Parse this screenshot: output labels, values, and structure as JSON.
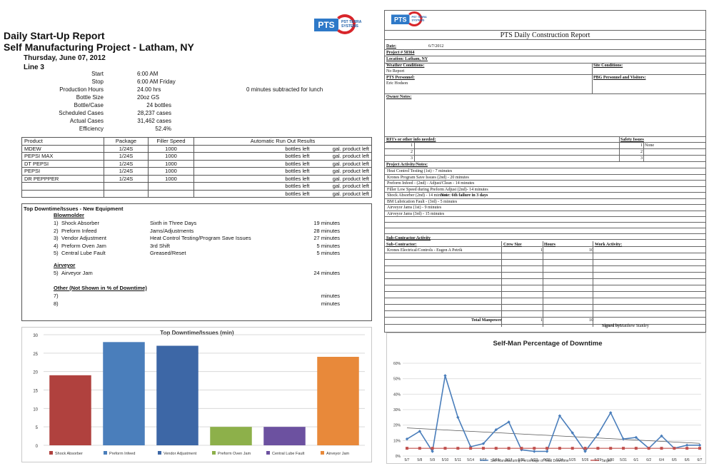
{
  "logo": {
    "text": "PTS",
    "sub": "PST TERRA\nSYSTEMS"
  },
  "left_report": {
    "title": "Daily Start-Up Report",
    "project": "Self Manufacturing Project - Latham, NY",
    "date": "Thursday, June 07, 2012",
    "line": "Line 3",
    "stats": [
      {
        "label": "Start",
        "value": "6:00 AM"
      },
      {
        "label": "Stop",
        "value": "6:00 AM Friday"
      },
      {
        "label": "Production Hours",
        "value": "24.00 hrs"
      },
      {
        "label": "Bottle Size",
        "value": "20oz GS"
      },
      {
        "label": "Bottle/Case",
        "value": "24 bottles"
      },
      {
        "label": "Scheduled Cases",
        "value": "28,237 cases"
      },
      {
        "label": "Actual Cases",
        "value": "31,462 cases"
      },
      {
        "label": "Efficiency",
        "value": "52.4%"
      }
    ],
    "lunch_note": "0 minutes subtracted for lunch",
    "product_table": {
      "headers": [
        "Product",
        "Package",
        "Filler Speed",
        "Automatic Run Out Results"
      ],
      "rows": [
        {
          "product": "MDEW",
          "package": "1/24S",
          "speed": "1000",
          "left": "bottles left",
          "gal": "gal. product left"
        },
        {
          "product": "PEPSI MAX",
          "package": "1/24S",
          "speed": "1000",
          "left": "bottles left",
          "gal": "gal. product left"
        },
        {
          "product": "DT PEPSI",
          "package": "1/24S",
          "speed": "1000",
          "left": "bottles left",
          "gal": "gal. product left"
        },
        {
          "product": "PEPSI",
          "package": "1/24S",
          "speed": "1000",
          "left": "bottles left",
          "gal": "gal. product left"
        },
        {
          "product": "DR PEPPPER",
          "package": "1/24S",
          "speed": "1000",
          "left": "bottles left",
          "gal": "gal. product left"
        },
        {
          "product": "",
          "package": "",
          "speed": "",
          "left": "bottles left",
          "gal": "gal. product left"
        },
        {
          "product": "",
          "package": "",
          "speed": "",
          "left": "bottles left",
          "gal": "gal. product left"
        }
      ]
    },
    "downtime": {
      "title": "Top Downtime/Issues - New Equipment",
      "section1": "Blowmolder",
      "items1": [
        {
          "n": "1)",
          "name": "Shock Absorber",
          "note": "Sixth in Three Days",
          "min": "19 minutes"
        },
        {
          "n": "2)",
          "name": "Preform Infeed",
          "note": "Jams/Adjustments",
          "min": "28 minutes"
        },
        {
          "n": "3)",
          "name": "Vendor Adjustment",
          "note": "Heat Control Testing/Program Save Issues",
          "min": "27 minutes"
        },
        {
          "n": "4)",
          "name": "Preform Oven Jam",
          "note": "3rd Shift",
          "min": "5 minutes"
        },
        {
          "n": "5)",
          "name": "Central Lube Fault",
          "note": "Greased/Reset",
          "min": "5 minutes"
        }
      ],
      "section2": "Airveyor",
      "items2": [
        {
          "n": "5)",
          "name": "Airveyor Jam",
          "note": "",
          "min": "24 minutes"
        }
      ],
      "section3": "Other (Not Shown in % of Downtime)",
      "items3": [
        {
          "n": "7)",
          "name": "",
          "note": "",
          "min": "minutes"
        },
        {
          "n": "8)",
          "name": "",
          "note": "",
          "min": "minutes"
        }
      ]
    }
  },
  "right_report": {
    "title": "PTS Daily Construction Report",
    "date_label": "Date:",
    "date_value": "6/7/2012",
    "project_label": "Project # 50364",
    "location_label": "Location: Latham, NY",
    "weather_label": "Weather Conditions:",
    "weather_value": "No Report",
    "site_label": "Site Conditions:",
    "personnel_label": "PTS Personnel:",
    "personnel_value": "Eric Hodson",
    "visitors_label": "PBG Personnel and Visitors:",
    "owner_label": "Owner Notes:",
    "rfi_label": "RFI's or other info needed:",
    "rfi_nums": [
      "1",
      "2",
      "3"
    ],
    "safety_label": "Safety Issues",
    "safety_nums": [
      "1",
      "2",
      "3"
    ],
    "safety_value": "None",
    "activity_label": "Project Activity/Notes:",
    "activities": [
      "Heat Control Testing (1st) - 7 minutes",
      "Krones Program Save Issues (2nd) - 20 minutes",
      "Preform Infeed - (2nd) - Adjust/Clean - 14 minutes",
      "Filler Low Speed during Preform Adjust (2nd)- 14 minutes",
      "Shock Absorber (2nd) - 14 minutes",
      "BM Lubrication Fault - (3rd) - 5 minutes",
      "Airveyor Jams (1st) - 9 minutes",
      "Airveyor Jams (3rd) - 15 minutes"
    ],
    "shock_note": "Note:  6th failure in 3 days",
    "sub_label": "Sub-Contractor Activity",
    "sub_headers": [
      "Sub-Contractor:",
      "Crew Size",
      "Hours",
      "Work Activity:"
    ],
    "sub_rows": [
      {
        "name": "Krones Electrical/Controls - Eugen A Petrik",
        "crew": "1",
        "hours": "10"
      }
    ],
    "total_label": "Total Manpower",
    "total_crew": "1",
    "total_hours": "10",
    "signed_label": "Signed by:",
    "signed_value": "Matthew Stanley"
  },
  "chart_data": [
    {
      "type": "bar",
      "title": "Top Downtime/Issues (min)",
      "categories": [
        "Shock Absorber",
        "Preform Infeed",
        "Vendor Adjustment",
        "Preform Oven Jam",
        "Central Lube Fault",
        "Airveyor Jam"
      ],
      "values": [
        19,
        28,
        27,
        5,
        5,
        24
      ],
      "colors": [
        "#b0413e",
        "#4a7ebb",
        "#3d67a6",
        "#8db04a",
        "#6c51a0",
        "#e8893a"
      ],
      "ylim": [
        0,
        30
      ],
      "yticks": [
        0,
        5,
        10,
        15,
        20,
        25,
        30
      ],
      "legend": "bottom"
    },
    {
      "type": "line",
      "title": "Self-Man Percentage of Downtime",
      "x": [
        "5/7",
        "5/8",
        "5/9",
        "5/10",
        "5/11",
        "5/14",
        "5/15",
        "5/16",
        "5/17",
        "5/21",
        "5/22",
        "5/23",
        "5/24",
        "5/25",
        "5/26",
        "5/29",
        "5/30",
        "5/31",
        "6/1",
        "6/2",
        "6/4",
        "6/5",
        "6/6",
        "6/7"
      ],
      "series": [
        {
          "name": "Self Manufacturing Percentage of Total Downtime",
          "color": "#4a7ebb",
          "values": [
            11,
            16,
            3,
            52,
            25,
            6,
            8,
            17,
            22,
            4,
            3,
            3,
            26,
            15,
            3,
            14,
            28,
            11,
            12,
            5,
            13,
            5,
            7,
            7
          ]
        },
        {
          "name": "Target",
          "color": "#c0504d",
          "values": [
            5,
            5,
            5,
            5,
            5,
            5,
            5,
            5,
            5,
            5,
            5,
            5,
            5,
            5,
            5,
            5,
            5,
            5,
            5,
            5,
            5,
            5,
            5,
            5
          ]
        }
      ],
      "trendline": true,
      "ylim": [
        0,
        60
      ],
      "yticks": [
        "0%",
        "10%",
        "20%",
        "30%",
        "40%",
        "50%",
        "60%"
      ],
      "legend": "bottom"
    }
  ]
}
